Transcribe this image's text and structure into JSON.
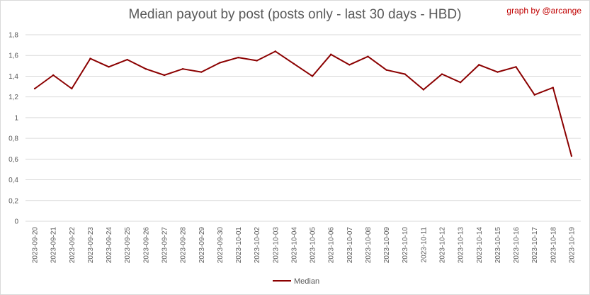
{
  "title": "Median payout by post (posts only - last 30 days - HBD)",
  "credit": "graph by @arcange",
  "colors": {
    "line": "#8b0000",
    "grid": "#d9d9d9",
    "axis_text": "#595959"
  },
  "chart_data": {
    "type": "line",
    "title": "Median payout by post (posts only - last 30 days - HBD)",
    "xlabel": "",
    "ylabel": "",
    "ylim": [
      0,
      1.8
    ],
    "y_ticks": [
      "0",
      "0,2",
      "0,4",
      "0,6",
      "0,8",
      "1",
      "1,2",
      "1,4",
      "1,6",
      "1,8"
    ],
    "grid": true,
    "legend": "bottom",
    "x": [
      "2023-09-20",
      "2023-09-21",
      "2023-09-22",
      "2023-09-23",
      "2023-09-24",
      "2023-09-25",
      "2023-09-26",
      "2023-09-27",
      "2023-09-28",
      "2023-09-29",
      "2023-09-30",
      "2023-10-01",
      "2023-10-02",
      "2023-10-03",
      "2023-10-04",
      "2023-10-05",
      "2023-10-06",
      "2023-10-07",
      "2023-10-08",
      "2023-10-09",
      "2023-10-10",
      "2023-10-11",
      "2023-10-12",
      "2023-10-13",
      "2023-10-14",
      "2023-10-15",
      "2023-10-16",
      "2023-10-17",
      "2023-10-18",
      "2023-10-19"
    ],
    "series": [
      {
        "name": "Median",
        "color": "#8b0000",
        "values": [
          1.28,
          1.41,
          1.28,
          1.57,
          1.49,
          1.56,
          1.47,
          1.41,
          1.47,
          1.44,
          1.53,
          1.58,
          1.55,
          1.64,
          1.52,
          1.4,
          1.61,
          1.51,
          1.59,
          1.46,
          1.42,
          1.27,
          1.42,
          1.34,
          1.51,
          1.44,
          1.49,
          1.22,
          1.29,
          0.63
        ]
      }
    ]
  }
}
